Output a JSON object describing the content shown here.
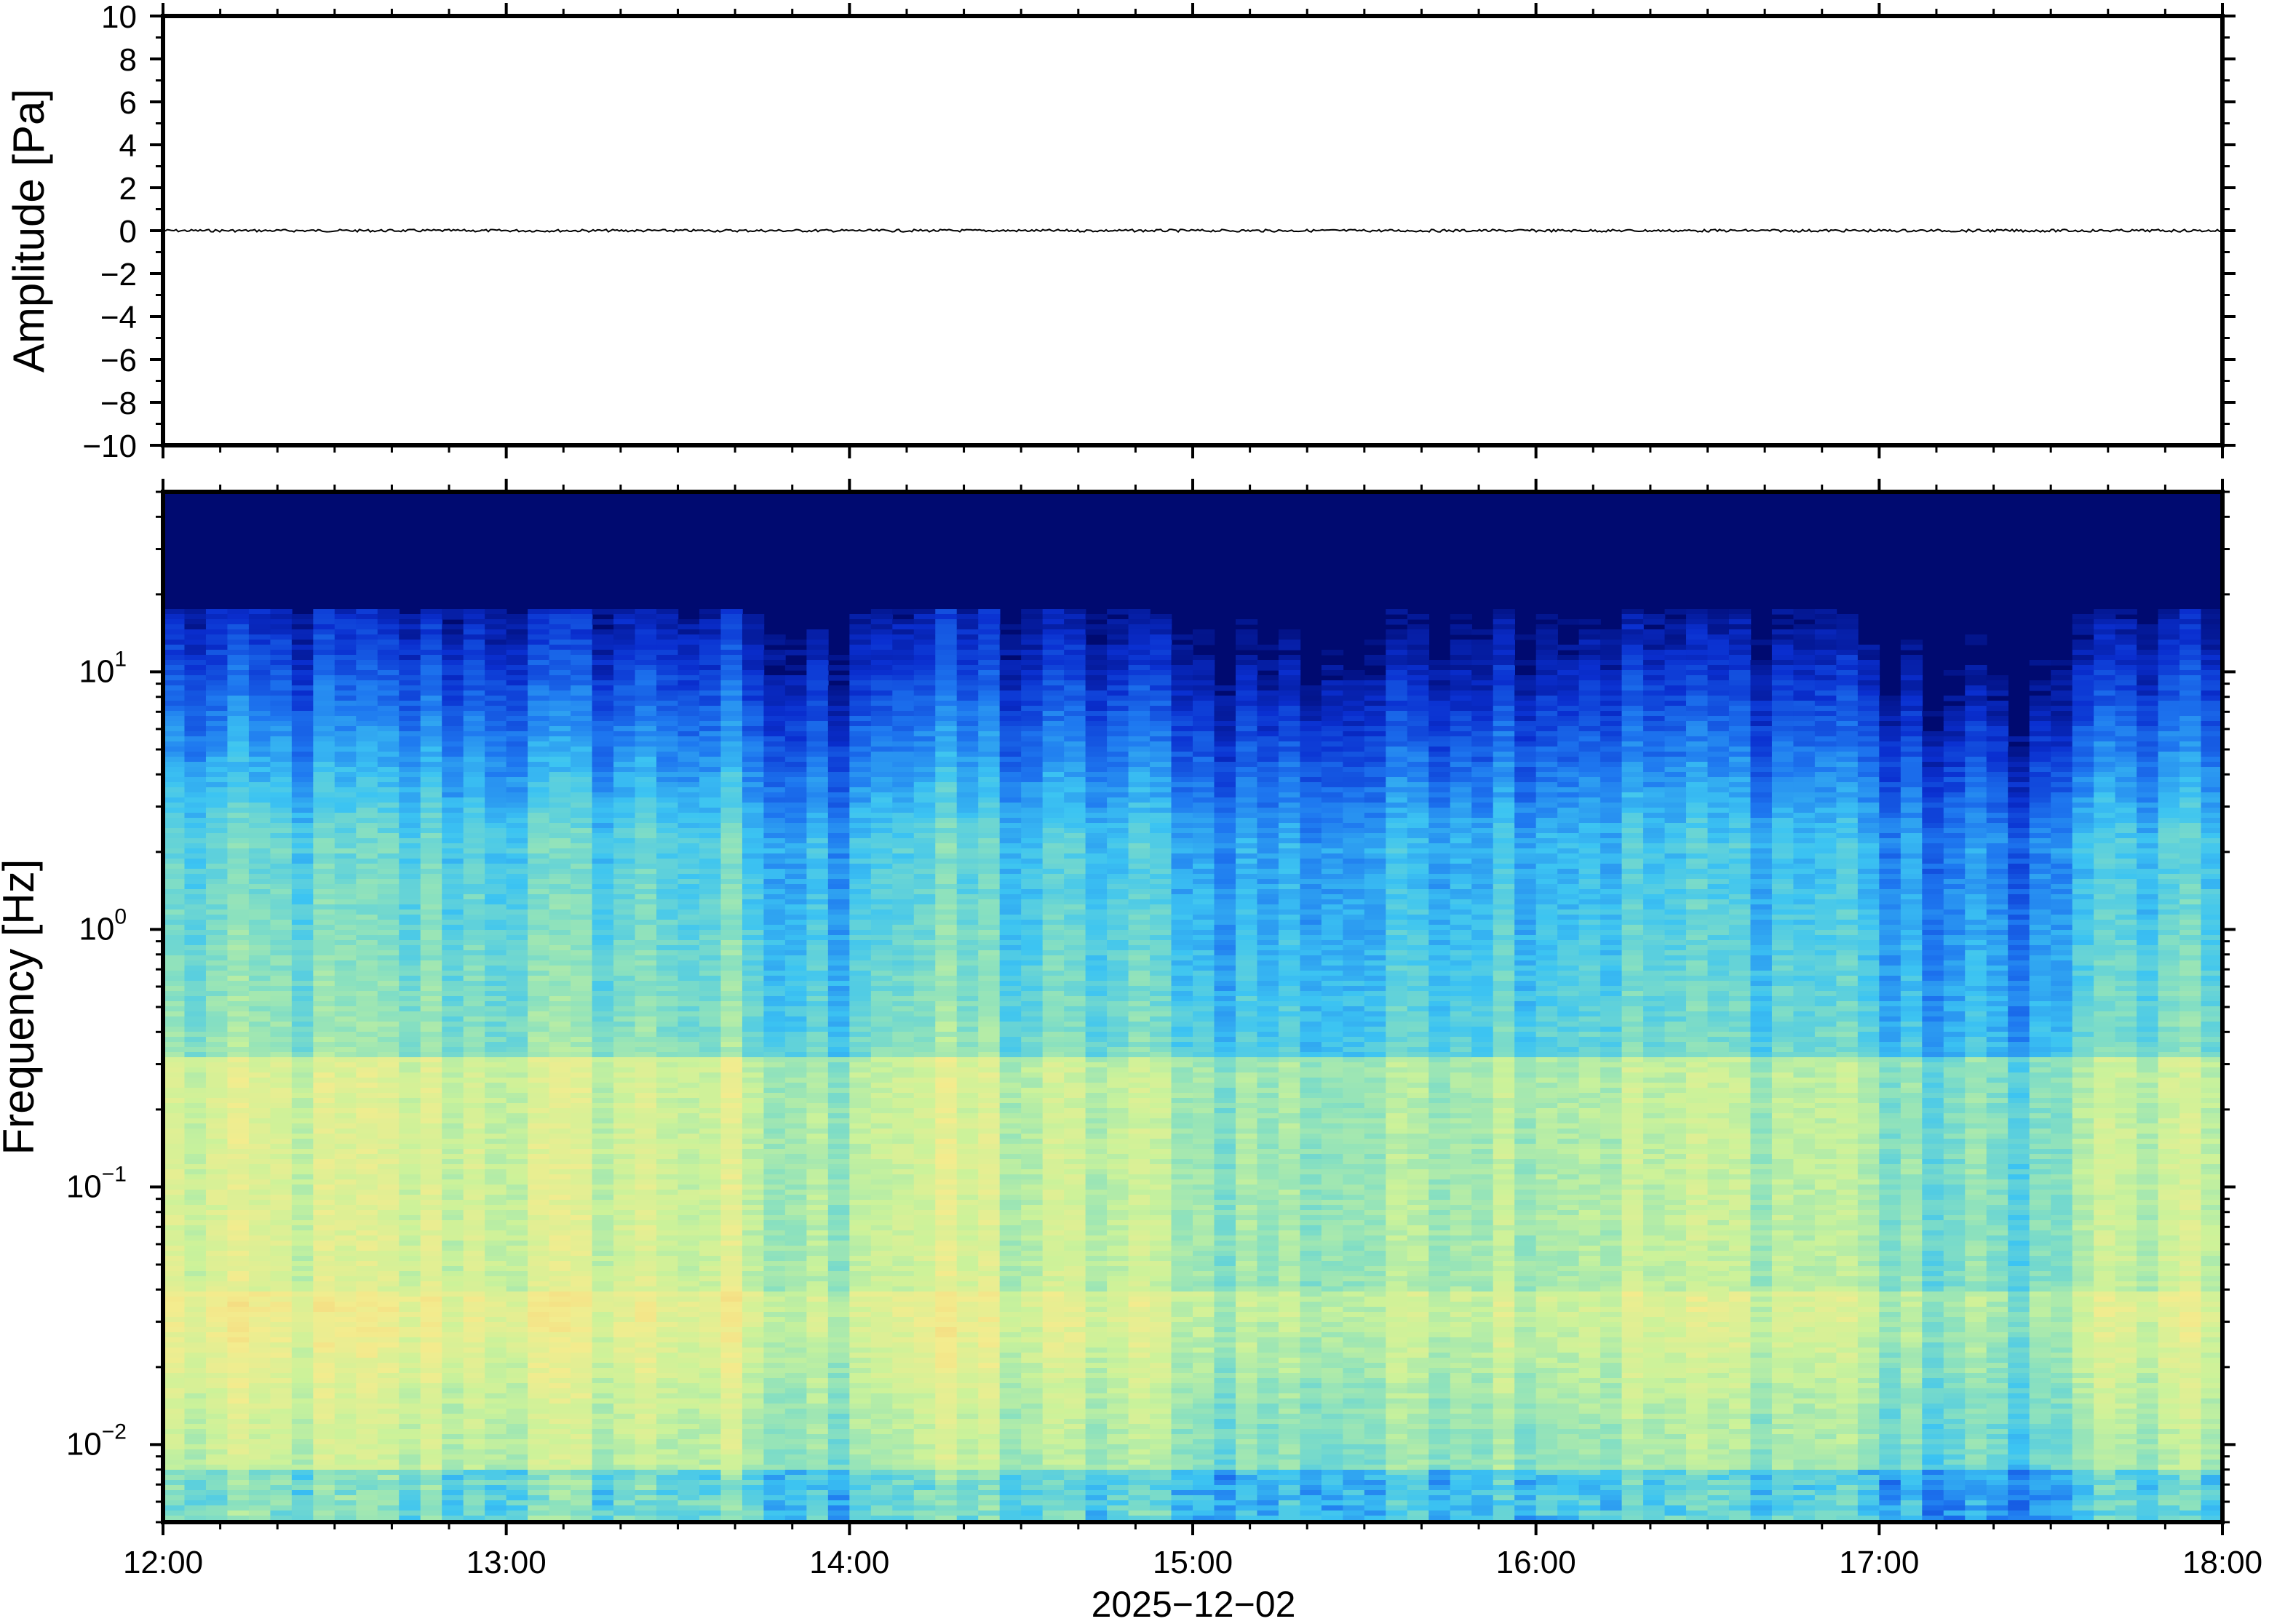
{
  "chart_data": [
    {
      "type": "line",
      "title": "",
      "xlabel": "",
      "ylabel": "Amplitude [Pa]",
      "xlim": [
        "12:00",
        "18:00"
      ],
      "ylim": [
        -10,
        10
      ],
      "y_ticks": [
        "10",
        "8",
        "6",
        "4",
        "2",
        "0",
        "−2",
        "−4",
        "−6",
        "−8",
        "−10"
      ],
      "grid": false,
      "series": [
        {
          "values_description": "near-zero noise trace",
          "y_approx": 0,
          "color": "#000000"
        }
      ]
    },
    {
      "type": "heatmap",
      "title": "",
      "xlabel": "2025−12−02",
      "ylabel": "Frequency [Hz]",
      "x_ticks": [
        "12:00",
        "13:00",
        "14:00",
        "15:00",
        "16:00",
        "17:00",
        "18:00"
      ],
      "y_scale": "log",
      "ylim": [
        0.005,
        50
      ],
      "y_ticks": [
        {
          "base": "10",
          "exp": "1"
        },
        {
          "base": "10",
          "exp": "0"
        },
        {
          "base": "10",
          "exp": "−1"
        },
        {
          "base": "10",
          "exp": "−2"
        }
      ],
      "colormap": "jet-like (dark blue low → cyan → yellow/orange high)",
      "colors": [
        "#000a70",
        "#0a2fd0",
        "#1e78f0",
        "#3cc4f2",
        "#88e0c0",
        "#cbf29a",
        "#f3ec8e",
        "#f5d27a",
        "#f3a868"
      ]
    }
  ]
}
